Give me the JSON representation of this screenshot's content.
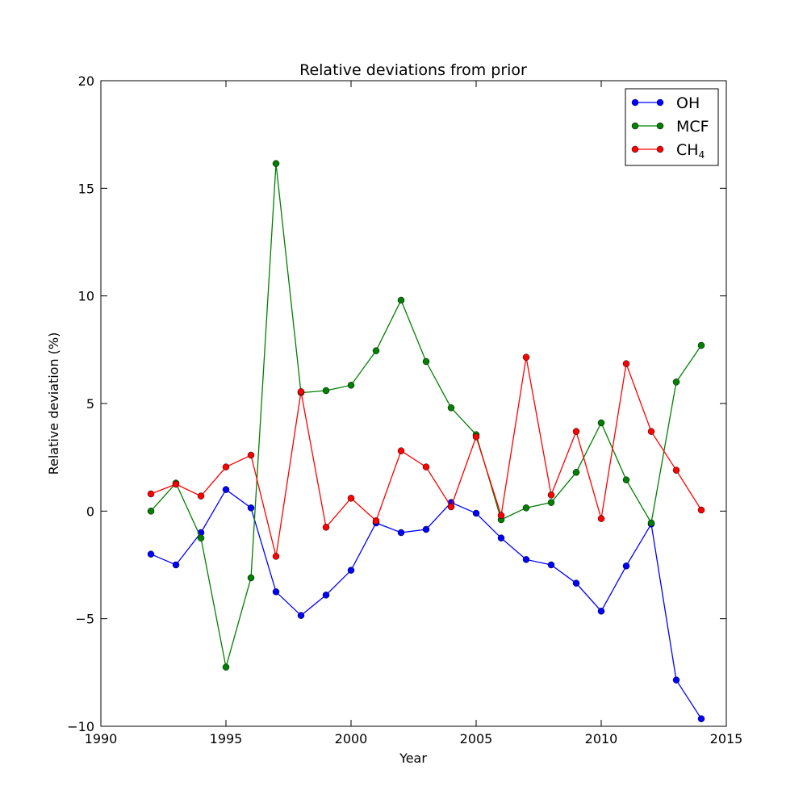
{
  "chart_data": {
    "type": "line",
    "title": "Relative deviations from prior",
    "xlabel": "Year",
    "ylabel": "Relative deviation (%)",
    "xlim": [
      1990,
      2015
    ],
    "ylim": [
      -10,
      20
    ],
    "xticks": [
      1990,
      1995,
      2000,
      2005,
      2010,
      2015
    ],
    "yticks": [
      -10,
      -5,
      0,
      5,
      10,
      15,
      20
    ],
    "xtick_labels": [
      "1990",
      "1995",
      "2000",
      "2005",
      "2010",
      "2015"
    ],
    "ytick_labels": [
      "−10",
      "−5",
      "0",
      "5",
      "10",
      "15",
      "20"
    ],
    "grid": false,
    "legend_position": "top-right",
    "x": [
      1992,
      1993,
      1994,
      1995,
      1996,
      1997,
      1998,
      1999,
      2000,
      2001,
      2002,
      2003,
      2004,
      2005,
      2006,
      2007,
      2008,
      2009,
      2010,
      2011,
      2012,
      2013,
      2014
    ],
    "series": [
      {
        "name": "OH",
        "color": "#0000ff",
        "values": [
          -2.0,
          -2.5,
          -1.0,
          1.0,
          0.15,
          -3.75,
          -4.85,
          -3.9,
          -2.75,
          -0.55,
          -1.0,
          -0.85,
          0.4,
          -0.1,
          -1.25,
          -2.25,
          -2.5,
          -3.35,
          -4.65,
          -2.55,
          -0.6,
          -7.85,
          -9.65
        ]
      },
      {
        "name": "MCF",
        "color": "#008000",
        "values": [
          0.0,
          1.3,
          -1.25,
          -7.25,
          -3.1,
          16.15,
          5.5,
          5.6,
          5.85,
          7.45,
          9.8,
          6.95,
          4.8,
          3.55,
          -0.4,
          0.15,
          0.4,
          1.8,
          4.1,
          1.45,
          -0.55,
          6.0,
          7.7
        ]
      },
      {
        "name": "CH4",
        "legend_label": "CH",
        "legend_subscript": "4",
        "color": "#ff0000",
        "values": [
          0.8,
          1.25,
          0.7,
          2.05,
          2.6,
          -2.1,
          5.55,
          -0.75,
          0.6,
          -0.45,
          2.8,
          2.05,
          0.2,
          3.45,
          -0.2,
          7.15,
          0.75,
          3.7,
          -0.35,
          6.85,
          3.7,
          1.9,
          0.05
        ]
      }
    ]
  }
}
